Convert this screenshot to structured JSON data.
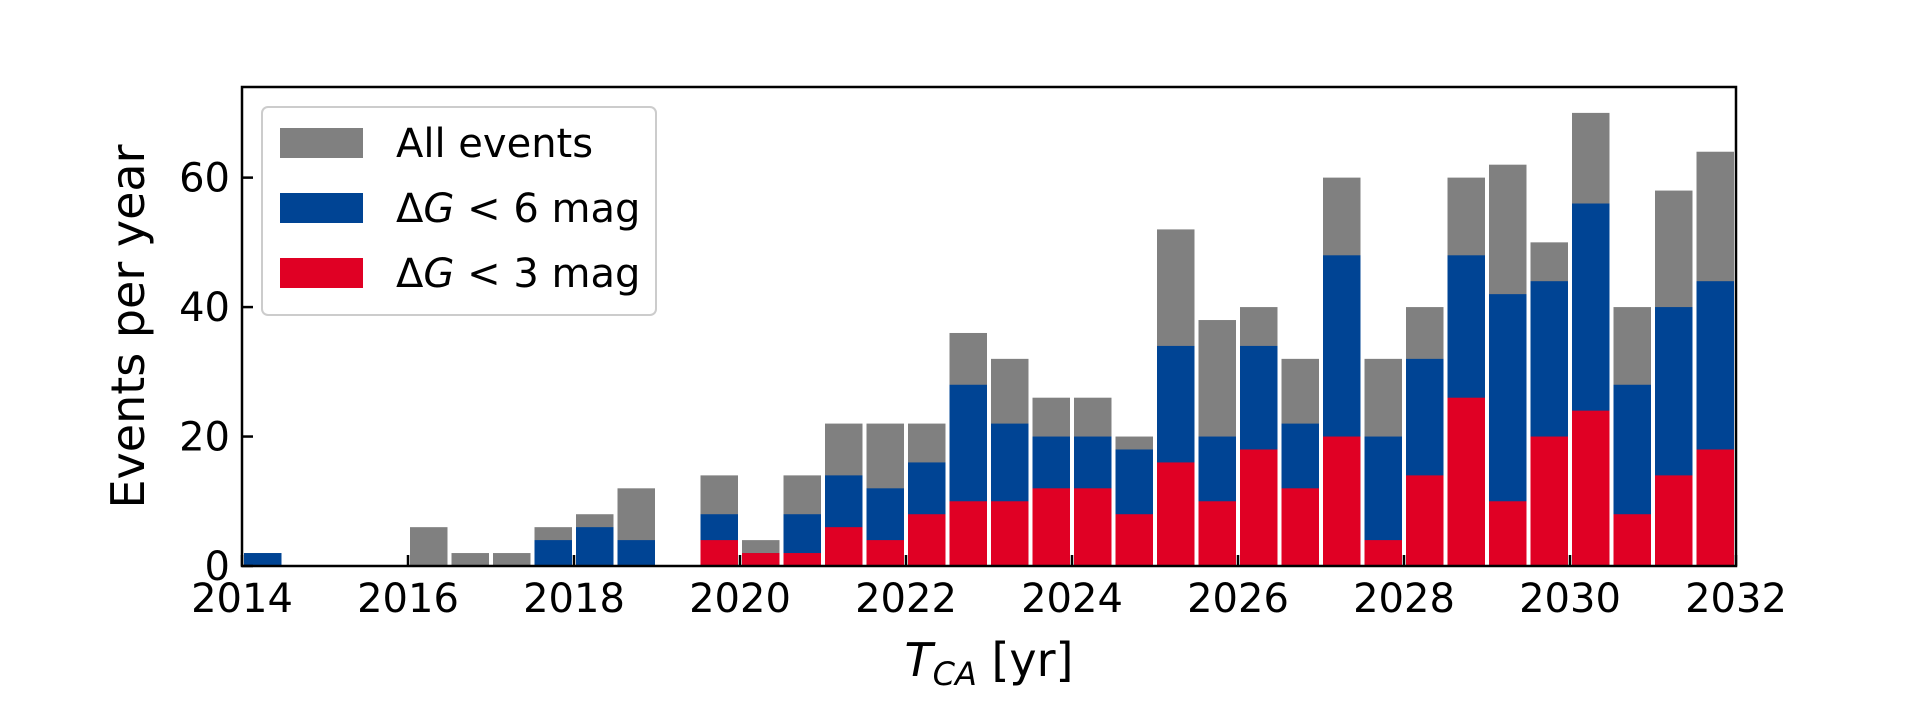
{
  "chart_data": {
    "type": "bar",
    "stacked": false,
    "overlaid": true,
    "bin_width_years": 0.5,
    "x_axis": {
      "label_main": "T",
      "label_subscript": "CA",
      "label_unit": " [yr]",
      "range": [
        2014,
        2032
      ],
      "ticks": [
        "2014",
        "2016",
        "2018",
        "2020",
        "2022",
        "2024",
        "2026",
        "2028",
        "2030",
        "2032"
      ]
    },
    "y_axis": {
      "label": "Events per year",
      "range": [
        0,
        74
      ],
      "ticks": [
        "0",
        "20",
        "40",
        "60"
      ]
    },
    "legend": {
      "position": "top-left",
      "entries": [
        {
          "series": "all",
          "text": "All events"
        },
        {
          "series": "dg6",
          "prefix": "Δ",
          "var": "G",
          "text": " < 6 mag"
        },
        {
          "series": "dg3",
          "prefix": "Δ",
          "var": "G",
          "text": " < 3 mag"
        }
      ]
    },
    "series": [
      {
        "id": "all",
        "name": "All events",
        "color": "#808080",
        "bins_start": [
          2014.0,
          2016.0,
          2016.5,
          2017.0,
          2017.5,
          2018.0,
          2018.5,
          2019.5,
          2020.0,
          2020.5,
          2021.0,
          2021.5,
          2022.0,
          2022.5,
          2023.0,
          2023.5,
          2024.0,
          2024.5,
          2025.0,
          2025.5,
          2026.0,
          2026.5,
          2027.0,
          2027.5,
          2028.0,
          2028.5,
          2029.0,
          2029.5,
          2030.0,
          2030.5,
          2031.0,
          2031.5
        ],
        "values": [
          2,
          6,
          2,
          2,
          6,
          8,
          12,
          14,
          4,
          14,
          22,
          22,
          22,
          36,
          32,
          26,
          26,
          20,
          52,
          38,
          40,
          32,
          60,
          32,
          40,
          60,
          62,
          50,
          70,
          40,
          58,
          64
        ]
      },
      {
        "id": "dg6",
        "name": "ΔG < 6 mag",
        "color": "#004494",
        "bins_start": [
          2014.0,
          2017.5,
          2018.0,
          2018.5,
          2019.5,
          2020.0,
          2020.5,
          2021.0,
          2021.5,
          2022.0,
          2022.5,
          2023.0,
          2023.5,
          2024.0,
          2024.5,
          2025.0,
          2025.5,
          2026.0,
          2026.5,
          2027.0,
          2027.5,
          2028.0,
          2028.5,
          2029.0,
          2029.5,
          2030.0,
          2030.5,
          2031.0,
          2031.5
        ],
        "values": [
          2,
          4,
          6,
          4,
          8,
          2,
          8,
          14,
          12,
          16,
          28,
          22,
          20,
          20,
          18,
          34,
          20,
          34,
          22,
          48,
          20,
          32,
          48,
          42,
          44,
          56,
          28,
          40,
          44
        ]
      },
      {
        "id": "dg3",
        "name": "ΔG < 3 mag",
        "color": "#e00024",
        "bins_start": [
          2019.5,
          2020.0,
          2020.5,
          2021.0,
          2021.5,
          2022.0,
          2022.5,
          2023.0,
          2023.5,
          2024.0,
          2024.5,
          2025.0,
          2025.5,
          2026.0,
          2026.5,
          2027.0,
          2027.5,
          2028.0,
          2028.5,
          2029.0,
          2029.5,
          2030.0,
          2030.5,
          2031.0,
          2031.5
        ],
        "values": [
          4,
          2,
          2,
          6,
          4,
          8,
          10,
          10,
          12,
          12,
          8,
          16,
          10,
          18,
          12,
          20,
          4,
          14,
          26,
          10,
          20,
          24,
          8,
          14,
          18
        ]
      }
    ]
  }
}
